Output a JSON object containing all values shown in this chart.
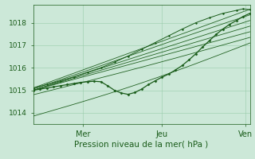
{
  "bg_color": "#cce8d8",
  "grid_color": "#99ccaa",
  "line_color": "#1a5c1a",
  "xlabel": "Pression niveau de la mer( hPa )",
  "xlabel_color": "#1a5c1a",
  "tick_color": "#1a5c1a",
  "ylim": [
    1013.5,
    1018.8
  ],
  "yticks": [
    1014,
    1015,
    1016,
    1017,
    1018
  ],
  "xlim": [
    0,
    96
  ],
  "mer_x": 22,
  "jeu_x": 57,
  "ven_x": 94,
  "xtick_labels": [
    "Mer",
    "Jeu",
    "Ven"
  ],
  "figsize": [
    3.2,
    2.0
  ],
  "dpi": 100
}
